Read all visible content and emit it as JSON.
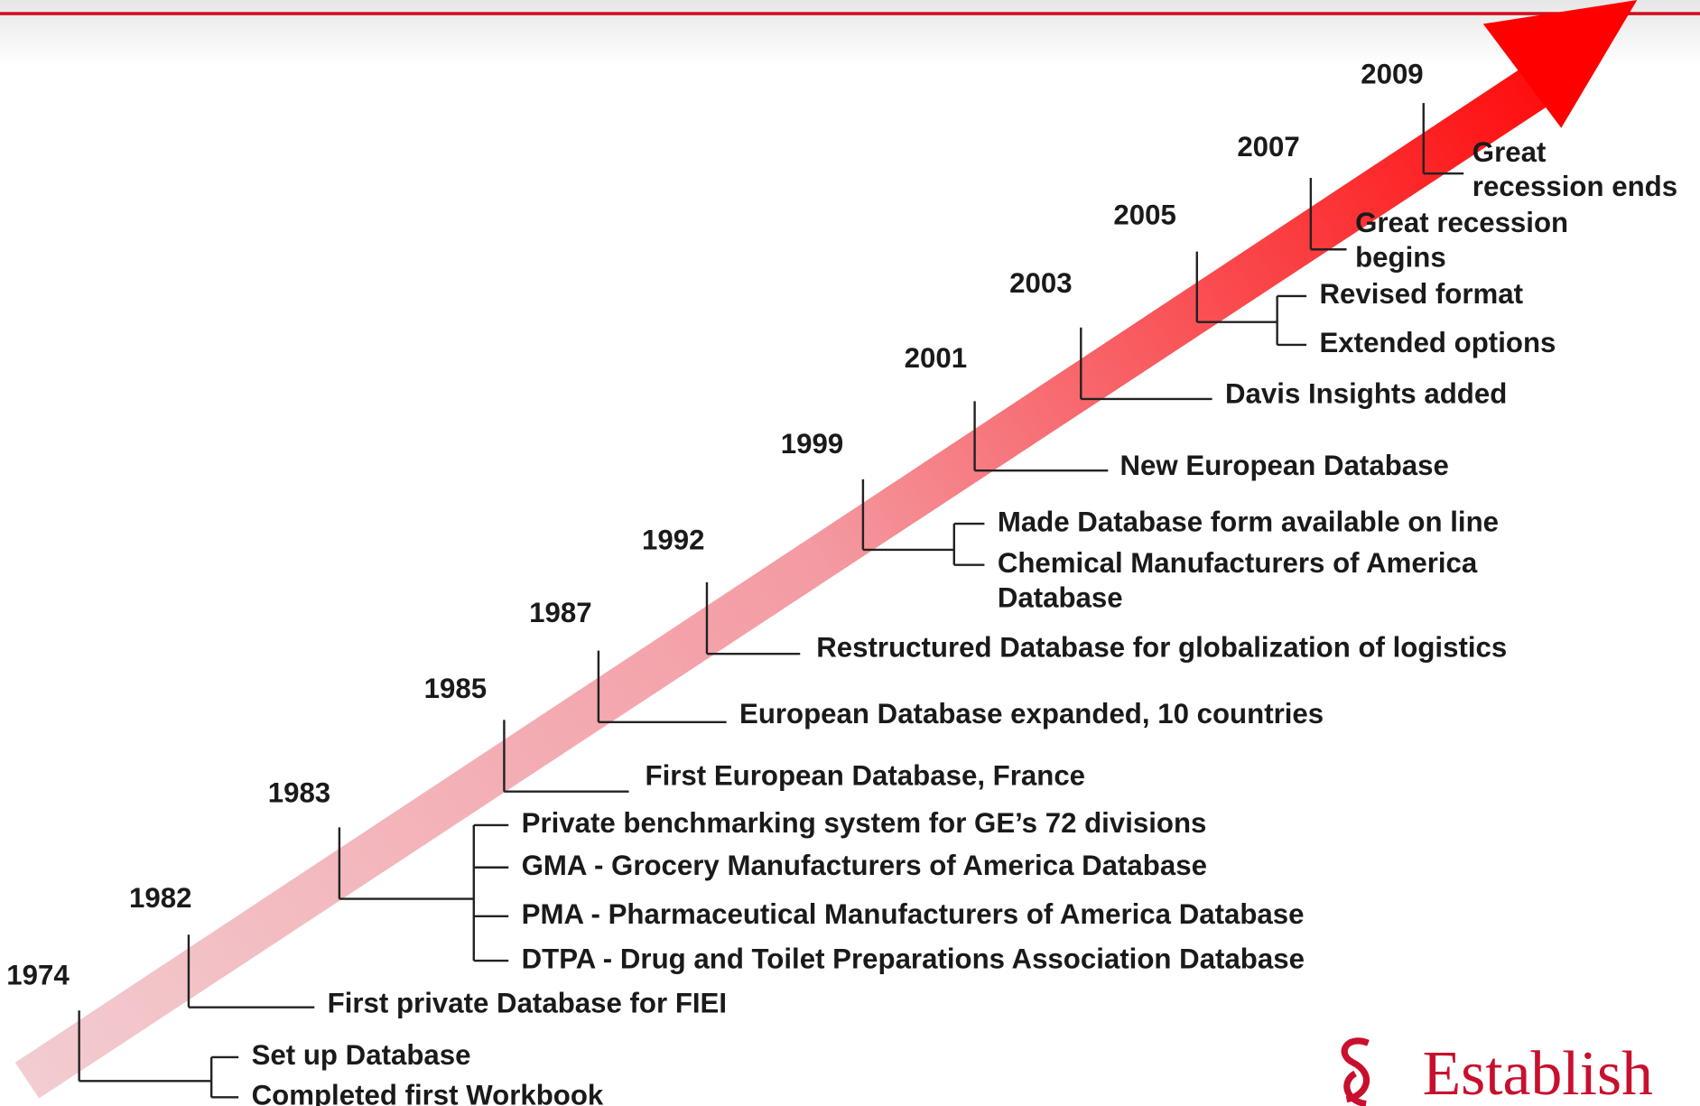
{
  "events": [
    {
      "year": "1974",
      "items": [
        [
          "Set up Database"
        ],
        [
          "Completed first Workbook"
        ]
      ]
    },
    {
      "year": "1982",
      "items": [
        [
          "First private Database for FIEI"
        ]
      ]
    },
    {
      "year": "1983",
      "items": [
        [
          "Private benchmarking system for GE’s 72 divisions"
        ],
        [
          "GMA - Grocery Manufacturers of America Database"
        ],
        [
          "PMA - Pharmaceutical Manufacturers of America Database"
        ],
        [
          "DTPA - Drug and Toilet Preparations Association Database"
        ]
      ]
    },
    {
      "year": "1985",
      "items": [
        [
          "First European Database, France"
        ]
      ]
    },
    {
      "year": "1987",
      "items": [
        [
          "European Database expanded, 10 countries"
        ]
      ]
    },
    {
      "year": "1992",
      "items": [
        [
          "Restructured Database for globalization of logistics"
        ]
      ]
    },
    {
      "year": "1999",
      "items": [
        [
          "Made Database form available on line"
        ],
        [
          "Chemical Manufacturers of America",
          "Database"
        ]
      ]
    },
    {
      "year": "2001",
      "items": [
        [
          "New European Database"
        ]
      ]
    },
    {
      "year": "2003",
      "items": [
        [
          "Davis Insights added"
        ]
      ]
    },
    {
      "year": "2005",
      "items": [
        [
          "Revised format"
        ],
        [
          "Extended options"
        ]
      ]
    },
    {
      "year": "2007",
      "items": [
        [
          "Great recession",
          "begins"
        ]
      ]
    },
    {
      "year": "2009",
      "items": [
        [
          "Great",
          "recession ends"
        ]
      ]
    }
  ],
  "logo": "Establish"
}
